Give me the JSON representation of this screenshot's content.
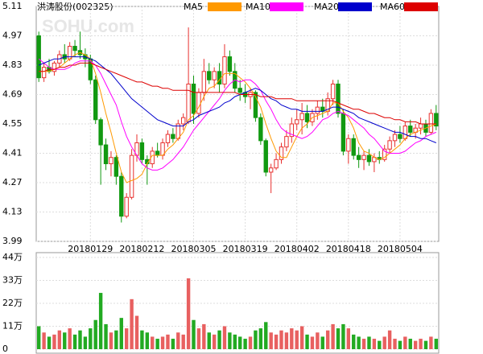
{
  "chart_data": [
    {
      "type": "candlestick",
      "title": "洪涛股份(002325)",
      "watermark": "SOHU.com",
      "categories": [
        null,
        null,
        null,
        null,
        null,
        null,
        null,
        null,
        null,
        null,
        "20180129",
        null,
        null,
        null,
        null,
        null,
        null,
        null,
        null,
        null,
        "20180212",
        null,
        null,
        null,
        null,
        null,
        null,
        null,
        null,
        null,
        "20180305",
        null,
        null,
        null,
        null,
        null,
        null,
        null,
        null,
        null,
        "20180319",
        null,
        null,
        null,
        null,
        null,
        null,
        null,
        null,
        null,
        "20180402",
        null,
        null,
        null,
        null,
        null,
        null,
        null,
        null,
        null,
        "20180418",
        null,
        null,
        null,
        null,
        null,
        null,
        null,
        null,
        null,
        "20180504",
        null,
        null,
        null,
        null,
        null,
        null,
        null
      ],
      "open": [
        4.97,
        4.77,
        4.82,
        4.8,
        4.84,
        4.88,
        4.86,
        4.92,
        4.9,
        4.88,
        4.86,
        4.76,
        4.57,
        4.45,
        4.36,
        4.39,
        4.3,
        4.11,
        4.2,
        4.4,
        4.46,
        4.38,
        4.36,
        4.42,
        4.4,
        4.46,
        4.5,
        4.48,
        4.55,
        4.56,
        4.74,
        4.6,
        4.7,
        4.8,
        4.76,
        4.8,
        4.74,
        4.87,
        4.8,
        4.72,
        4.7,
        4.68,
        4.7,
        4.58,
        4.47,
        4.32,
        4.34,
        4.38,
        4.44,
        4.49,
        4.55,
        4.57,
        4.6,
        4.56,
        4.6,
        4.63,
        4.61,
        4.67,
        4.74,
        4.6,
        4.42,
        4.48,
        4.4,
        4.38,
        4.4,
        4.37,
        4.39,
        4.38,
        4.43,
        4.47,
        4.5,
        4.48,
        4.54,
        4.51,
        4.53,
        4.55,
        4.51,
        4.6
      ],
      "high": [
        4.99,
        4.84,
        4.86,
        4.85,
        4.9,
        4.93,
        4.94,
        4.95,
        4.99,
        4.91,
        4.88,
        4.78,
        4.58,
        4.48,
        4.42,
        4.4,
        4.32,
        4.22,
        4.43,
        4.5,
        4.48,
        4.4,
        4.44,
        4.46,
        4.48,
        4.52,
        4.53,
        4.57,
        4.6,
        5.01,
        4.78,
        4.72,
        4.86,
        4.84,
        4.82,
        4.84,
        4.93,
        4.9,
        4.84,
        4.76,
        4.74,
        4.72,
        4.71,
        4.6,
        4.48,
        4.36,
        4.41,
        4.46,
        4.52,
        4.58,
        4.62,
        4.65,
        4.64,
        4.62,
        4.66,
        4.67,
        4.7,
        4.76,
        4.76,
        4.62,
        4.5,
        4.5,
        4.44,
        4.42,
        4.43,
        4.41,
        4.42,
        4.45,
        4.49,
        4.52,
        4.54,
        4.56,
        4.57,
        4.55,
        4.58,
        4.57,
        4.62,
        4.64
      ],
      "low": [
        4.75,
        4.75,
        4.79,
        4.78,
        4.82,
        4.84,
        4.85,
        4.87,
        4.86,
        4.82,
        4.74,
        4.55,
        4.26,
        4.33,
        4.3,
        4.26,
        4.08,
        4.1,
        4.19,
        4.37,
        4.36,
        4.26,
        4.34,
        4.39,
        4.38,
        4.44,
        4.46,
        4.47,
        4.52,
        4.55,
        4.55,
        4.58,
        4.66,
        4.74,
        4.72,
        4.7,
        4.72,
        4.78,
        4.7,
        4.66,
        4.65,
        4.62,
        4.56,
        4.45,
        4.3,
        4.22,
        4.33,
        4.36,
        4.42,
        4.46,
        4.52,
        4.5,
        4.53,
        4.54,
        4.57,
        4.58,
        4.59,
        4.64,
        4.58,
        4.4,
        4.36,
        4.38,
        4.34,
        4.33,
        4.35,
        4.32,
        4.36,
        4.37,
        4.41,
        4.44,
        4.46,
        4.47,
        4.49,
        4.48,
        4.5,
        4.49,
        4.5,
        4.52
      ],
      "close": [
        4.77,
        4.82,
        4.8,
        4.84,
        4.88,
        4.86,
        4.92,
        4.9,
        4.88,
        4.86,
        4.76,
        4.57,
        4.45,
        4.36,
        4.39,
        4.3,
        4.11,
        4.2,
        4.4,
        4.46,
        4.38,
        4.36,
        4.42,
        4.4,
        4.46,
        4.5,
        4.48,
        4.55,
        4.58,
        4.74,
        4.6,
        4.7,
        4.8,
        4.76,
        4.8,
        4.74,
        4.87,
        4.8,
        4.72,
        4.7,
        4.68,
        4.7,
        4.58,
        4.47,
        4.32,
        4.34,
        4.38,
        4.44,
        4.49,
        4.55,
        4.57,
        4.6,
        4.56,
        4.6,
        4.63,
        4.61,
        4.67,
        4.74,
        4.6,
        4.42,
        4.48,
        4.4,
        4.38,
        4.4,
        4.37,
        4.39,
        4.38,
        4.43,
        4.47,
        4.5,
        4.48,
        4.54,
        4.51,
        4.53,
        4.55,
        4.51,
        4.6,
        4.54
      ],
      "up_color": "#e8312f",
      "down_color": "#119911",
      "series": [
        {
          "name": "MA5",
          "color": "#ff9900",
          "values": [
            4.8,
            4.8,
            4.8,
            4.81,
            4.82,
            4.84,
            4.86,
            4.88,
            4.89,
            4.88,
            4.86,
            4.79,
            4.7,
            4.6,
            4.51,
            4.41,
            4.32,
            4.27,
            4.28,
            4.29,
            4.31,
            4.36,
            4.4,
            4.4,
            4.4,
            4.43,
            4.45,
            4.48,
            4.51,
            4.57,
            4.59,
            4.63,
            4.68,
            4.72,
            4.73,
            4.76,
            4.79,
            4.79,
            4.79,
            4.77,
            4.75,
            4.72,
            4.68,
            4.63,
            4.55,
            4.48,
            4.42,
            4.39,
            4.39,
            4.44,
            4.49,
            4.53,
            4.55,
            4.58,
            4.59,
            4.6,
            4.61,
            4.65,
            4.65,
            4.61,
            4.58,
            4.53,
            4.46,
            4.42,
            4.41,
            4.39,
            4.38,
            4.39,
            4.41,
            4.43,
            4.45,
            4.48,
            4.5,
            4.51,
            4.52,
            4.53,
            4.54,
            4.55
          ]
        },
        {
          "name": "MA10",
          "color": "#ff00ff",
          "values": [
            4.86,
            4.84,
            4.82,
            4.81,
            4.81,
            4.81,
            4.82,
            4.84,
            4.85,
            4.85,
            4.85,
            4.83,
            4.79,
            4.74,
            4.69,
            4.64,
            4.56,
            4.49,
            4.44,
            4.4,
            4.36,
            4.34,
            4.33,
            4.33,
            4.34,
            4.36,
            4.38,
            4.41,
            4.44,
            4.48,
            4.52,
            4.55,
            4.58,
            4.61,
            4.64,
            4.67,
            4.71,
            4.74,
            4.76,
            4.75,
            4.76,
            4.76,
            4.74,
            4.71,
            4.66,
            4.62,
            4.57,
            4.53,
            4.51,
            4.5,
            4.49,
            4.48,
            4.49,
            4.51,
            4.54,
            4.57,
            4.58,
            4.6,
            4.61,
            4.6,
            4.59,
            4.57,
            4.55,
            4.53,
            4.5,
            4.48,
            4.45,
            4.42,
            4.41,
            4.41,
            4.41,
            4.42,
            4.44,
            4.46,
            4.47,
            4.49,
            4.5,
            4.51
          ]
        },
        {
          "name": "MA20",
          "color": "#0000cc",
          "values": [
            4.83,
            4.84,
            4.85,
            4.86,
            4.86,
            4.87,
            4.87,
            4.87,
            4.87,
            4.87,
            4.86,
            4.85,
            4.83,
            4.81,
            4.79,
            4.76,
            4.73,
            4.7,
            4.67,
            4.65,
            4.63,
            4.61,
            4.59,
            4.57,
            4.56,
            4.55,
            4.54,
            4.54,
            4.54,
            4.56,
            4.57,
            4.59,
            4.6,
            4.61,
            4.62,
            4.63,
            4.65,
            4.66,
            4.68,
            4.69,
            4.7,
            4.71,
            4.72,
            4.71,
            4.69,
            4.67,
            4.66,
            4.64,
            4.63,
            4.62,
            4.62,
            4.61,
            4.61,
            4.61,
            4.61,
            4.61,
            4.62,
            4.63,
            4.63,
            4.62,
            4.61,
            4.6,
            4.58,
            4.57,
            4.56,
            4.55,
            4.54,
            4.53,
            4.52,
            4.51,
            4.51,
            4.5,
            4.49,
            4.49,
            4.48,
            4.48,
            4.47,
            4.46
          ]
        },
        {
          "name": "MA60",
          "color": "#dd0000",
          "values": [
            4.8,
            4.8,
            4.81,
            4.81,
            4.82,
            4.82,
            4.83,
            4.83,
            4.84,
            4.84,
            4.84,
            4.83,
            4.82,
            4.81,
            4.8,
            4.79,
            4.78,
            4.77,
            4.76,
            4.75,
            4.75,
            4.74,
            4.73,
            4.73,
            4.72,
            4.72,
            4.71,
            4.71,
            4.71,
            4.71,
            4.7,
            4.7,
            4.7,
            4.7,
            4.7,
            4.7,
            4.7,
            4.7,
            4.7,
            4.69,
            4.69,
            4.69,
            4.69,
            4.68,
            4.68,
            4.68,
            4.67,
            4.67,
            4.67,
            4.67,
            4.66,
            4.66,
            4.66,
            4.66,
            4.66,
            4.66,
            4.66,
            4.66,
            4.65,
            4.64,
            4.63,
            4.62,
            4.62,
            4.61,
            4.6,
            4.6,
            4.59,
            4.58,
            4.58,
            4.57,
            4.57,
            4.56,
            4.56,
            4.56,
            4.55,
            4.55,
            4.55,
            4.55
          ]
        }
      ],
      "ylim": [
        3.99,
        5.11
      ],
      "yticks": [
        3.99,
        4.13,
        4.27,
        4.41,
        4.55,
        4.69,
        4.83,
        4.97,
        5.11
      ],
      "grid": true
    },
    {
      "type": "bar",
      "values": [
        11,
        8,
        6,
        7,
        9,
        8,
        10,
        7,
        9,
        6,
        10,
        14,
        27,
        12,
        8,
        9,
        15,
        10,
        24,
        16,
        9,
        8,
        6,
        5,
        6,
        7,
        5,
        8,
        7,
        34,
        14,
        10,
        12,
        8,
        7,
        9,
        11,
        8,
        7,
        6,
        5,
        6,
        9,
        10,
        13,
        8,
        7,
        9,
        8,
        10,
        9,
        11,
        7,
        6,
        8,
        6,
        9,
        12,
        10,
        12,
        10,
        7,
        6,
        5,
        6,
        5,
        4,
        6,
        9,
        5,
        4,
        6,
        5,
        4,
        5,
        4,
        6,
        5
      ],
      "ylim": [
        0,
        44
      ],
      "yticks": [
        0,
        {
          "value": 11,
          "label": "11万"
        },
        {
          "value": 22,
          "label": "22万"
        },
        {
          "value": 33,
          "label": "33万"
        },
        {
          "value": 44,
          "label": "44万"
        }
      ],
      "grid": true
    }
  ]
}
